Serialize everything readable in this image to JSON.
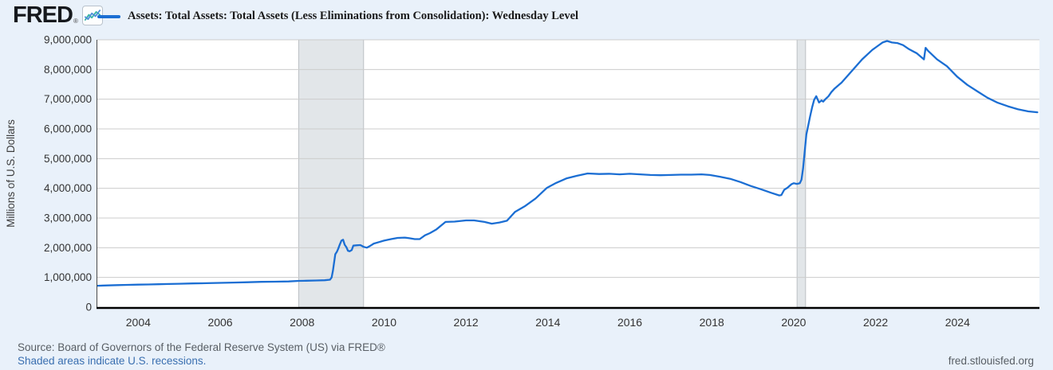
{
  "header": {
    "logo_text": "FRED",
    "logo_registered": "®",
    "series_title": "Assets: Total Assets: Total Assets (Less Eliminations from Consolidation): Wednesday Level"
  },
  "chart_data": {
    "type": "line",
    "title": "Assets: Total Assets: Total Assets (Less Eliminations from Consolidation): Wednesday Level",
    "ylabel": "Millions of U.S. Dollars",
    "xlabel": "",
    "ylim": [
      0,
      9000000
    ],
    "x_range": [
      2003.0,
      2026.0
    ],
    "grid": "horizontal",
    "legend_position": "top",
    "line_color": "#1b6ed3",
    "band_color": "#e2e6e9",
    "band_border_color": "#bcc0c4",
    "gridline_color": "#cccccc",
    "axis_line_color": "#000000",
    "plot_bg": "#ffffff",
    "y_ticks": [
      {
        "label": "9,000,000",
        "value": 9000000
      },
      {
        "label": "8,000,000",
        "value": 8000000
      },
      {
        "label": "7,000,000",
        "value": 7000000
      },
      {
        "label": "6,000,000",
        "value": 6000000
      },
      {
        "label": "5,000,000",
        "value": 5000000
      },
      {
        "label": "4,000,000",
        "value": 4000000
      },
      {
        "label": "3,000,000",
        "value": 3000000
      },
      {
        "label": "2,000,000",
        "value": 2000000
      },
      {
        "label": "1,000,000",
        "value": 1000000
      },
      {
        "label": "0",
        "value": 0
      }
    ],
    "x_ticks": [
      {
        "label": "2004",
        "value": 2004
      },
      {
        "label": "2006",
        "value": 2006
      },
      {
        "label": "2008",
        "value": 2008
      },
      {
        "label": "2010",
        "value": 2010
      },
      {
        "label": "2012",
        "value": 2012
      },
      {
        "label": "2014",
        "value": 2014
      },
      {
        "label": "2016",
        "value": 2016
      },
      {
        "label": "2018",
        "value": 2018
      },
      {
        "label": "2020",
        "value": 2020
      },
      {
        "label": "2022",
        "value": 2022
      },
      {
        "label": "2024",
        "value": 2024
      }
    ],
    "recessions": [
      [
        2007.917,
        2009.5
      ],
      [
        2020.083,
        2020.29
      ]
    ],
    "series": [
      {
        "name": "Assets: Total Assets: Total Assets (Less Eliminations from Consolidation): Wednesday Level",
        "color": "#1b6ed3",
        "points": [
          [
            2003.0,
            720000
          ],
          [
            2003.25,
            731000
          ],
          [
            2003.5,
            742000
          ],
          [
            2003.75,
            751000
          ],
          [
            2004.0,
            758000
          ],
          [
            2004.25,
            764000
          ],
          [
            2004.5,
            771000
          ],
          [
            2004.75,
            779000
          ],
          [
            2005.0,
            788000
          ],
          [
            2005.33,
            797000
          ],
          [
            2005.67,
            807000
          ],
          [
            2006.0,
            818000
          ],
          [
            2006.33,
            828000
          ],
          [
            2006.67,
            839000
          ],
          [
            2007.0,
            852000
          ],
          [
            2007.33,
            858000
          ],
          [
            2007.67,
            866000
          ],
          [
            2007.92,
            884000
          ],
          [
            2008.1,
            890000
          ],
          [
            2008.35,
            896000
          ],
          [
            2008.55,
            905000
          ],
          [
            2008.68,
            924000
          ],
          [
            2008.72,
            1000000
          ],
          [
            2008.75,
            1220000
          ],
          [
            2008.78,
            1500000
          ],
          [
            2008.81,
            1780000
          ],
          [
            2008.85,
            1870000
          ],
          [
            2008.88,
            1960000
          ],
          [
            2008.92,
            2110000
          ],
          [
            2008.96,
            2240000
          ],
          [
            2009.0,
            2270000
          ],
          [
            2009.04,
            2100000
          ],
          [
            2009.08,
            2020000
          ],
          [
            2009.12,
            1900000
          ],
          [
            2009.16,
            1880000
          ],
          [
            2009.21,
            1920000
          ],
          [
            2009.25,
            2070000
          ],
          [
            2009.33,
            2080000
          ],
          [
            2009.42,
            2090000
          ],
          [
            2009.5,
            2030000
          ],
          [
            2009.58,
            2000000
          ],
          [
            2009.67,
            2070000
          ],
          [
            2009.75,
            2140000
          ],
          [
            2009.88,
            2190000
          ],
          [
            2010.0,
            2240000
          ],
          [
            2010.17,
            2290000
          ],
          [
            2010.33,
            2330000
          ],
          [
            2010.5,
            2340000
          ],
          [
            2010.62,
            2320000
          ],
          [
            2010.75,
            2290000
          ],
          [
            2010.87,
            2290000
          ],
          [
            2011.0,
            2420000
          ],
          [
            2011.12,
            2490000
          ],
          [
            2011.28,
            2620000
          ],
          [
            2011.5,
            2870000
          ],
          [
            2011.72,
            2880000
          ],
          [
            2012.0,
            2920000
          ],
          [
            2012.2,
            2920000
          ],
          [
            2012.45,
            2870000
          ],
          [
            2012.63,
            2810000
          ],
          [
            2012.82,
            2850000
          ],
          [
            2013.0,
            2910000
          ],
          [
            2013.2,
            3210000
          ],
          [
            2013.45,
            3410000
          ],
          [
            2013.7,
            3660000
          ],
          [
            2013.97,
            4010000
          ],
          [
            2014.2,
            4180000
          ],
          [
            2014.45,
            4330000
          ],
          [
            2014.7,
            4420000
          ],
          [
            2014.97,
            4500000
          ],
          [
            2015.25,
            4480000
          ],
          [
            2015.5,
            4490000
          ],
          [
            2015.75,
            4470000
          ],
          [
            2016.0,
            4490000
          ],
          [
            2016.25,
            4470000
          ],
          [
            2016.5,
            4450000
          ],
          [
            2016.75,
            4440000
          ],
          [
            2017.0,
            4450000
          ],
          [
            2017.25,
            4460000
          ],
          [
            2017.5,
            4460000
          ],
          [
            2017.75,
            4470000
          ],
          [
            2017.95,
            4450000
          ],
          [
            2018.2,
            4390000
          ],
          [
            2018.45,
            4320000
          ],
          [
            2018.7,
            4210000
          ],
          [
            2018.95,
            4080000
          ],
          [
            2019.2,
            3970000
          ],
          [
            2019.45,
            3850000
          ],
          [
            2019.65,
            3760000
          ],
          [
            2019.7,
            3775000
          ],
          [
            2019.77,
            3950000
          ],
          [
            2019.85,
            4020000
          ],
          [
            2019.95,
            4140000
          ],
          [
            2020.0,
            4170000
          ],
          [
            2020.08,
            4150000
          ],
          [
            2020.15,
            4170000
          ],
          [
            2020.19,
            4290000
          ],
          [
            2020.23,
            4670000
          ],
          [
            2020.27,
            5250000
          ],
          [
            2020.31,
            5810000
          ],
          [
            2020.35,
            6080000
          ],
          [
            2020.4,
            6420000
          ],
          [
            2020.45,
            6720000
          ],
          [
            2020.5,
            6980000
          ],
          [
            2020.55,
            7100000
          ],
          [
            2020.58,
            7010000
          ],
          [
            2020.62,
            6890000
          ],
          [
            2020.68,
            6960000
          ],
          [
            2020.72,
            6920000
          ],
          [
            2020.78,
            7010000
          ],
          [
            2020.85,
            7100000
          ],
          [
            2020.92,
            7240000
          ],
          [
            2021.0,
            7360000
          ],
          [
            2021.17,
            7560000
          ],
          [
            2021.42,
            7950000
          ],
          [
            2021.67,
            8340000
          ],
          [
            2021.92,
            8660000
          ],
          [
            2022.02,
            8760000
          ],
          [
            2022.17,
            8910000
          ],
          [
            2022.28,
            8960000
          ],
          [
            2022.4,
            8910000
          ],
          [
            2022.53,
            8890000
          ],
          [
            2022.67,
            8820000
          ],
          [
            2022.82,
            8680000
          ],
          [
            2023.0,
            8550000
          ],
          [
            2023.18,
            8340000
          ],
          [
            2023.22,
            8730000
          ],
          [
            2023.28,
            8630000
          ],
          [
            2023.5,
            8340000
          ],
          [
            2023.74,
            8110000
          ],
          [
            2023.99,
            7760000
          ],
          [
            2024.24,
            7480000
          ],
          [
            2024.49,
            7260000
          ],
          [
            2024.73,
            7050000
          ],
          [
            2024.98,
            6880000
          ],
          [
            2025.23,
            6760000
          ],
          [
            2025.48,
            6660000
          ],
          [
            2025.73,
            6590000
          ],
          [
            2025.95,
            6560000
          ]
        ]
      }
    ]
  },
  "footer": {
    "source_text": "Source: Board of Governors of the Federal Reserve System (US) via FRED®",
    "recession_note": "Shaded areas indicate U.S. recessions.",
    "site_url": "fred.stlouisfed.org"
  },
  "colors": {
    "page_bg": "#e9f1fa",
    "link": "#3a6fb0",
    "muted_text": "#585e64"
  }
}
